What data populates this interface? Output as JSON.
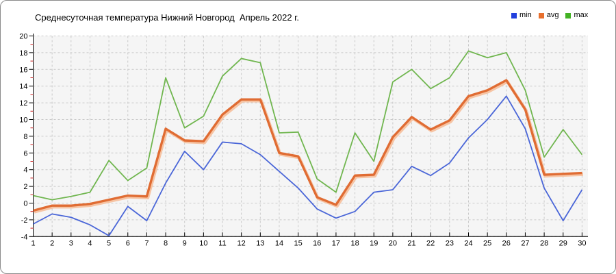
{
  "window": {
    "type": "static-chart-image"
  },
  "legend": [
    {
      "label": "min",
      "color": "#2240dd"
    },
    {
      "label": "avg",
      "color": "#e8702e"
    },
    {
      "label": "max",
      "color": "#43b224"
    }
  ],
  "chart_data": {
    "type": "line",
    "title": "Среднесуточная температура Нижний Новгород  Апрель 2022 г.",
    "xlabel": "",
    "ylabel": "",
    "x": [
      1,
      2,
      3,
      4,
      5,
      6,
      7,
      8,
      9,
      10,
      11,
      12,
      13,
      14,
      15,
      16,
      17,
      18,
      19,
      20,
      21,
      22,
      23,
      24,
      25,
      26,
      27,
      28,
      29,
      30
    ],
    "xticks": [
      1,
      2,
      3,
      4,
      5,
      6,
      7,
      8,
      9,
      10,
      11,
      12,
      13,
      14,
      15,
      16,
      17,
      18,
      19,
      20,
      21,
      22,
      23,
      24,
      25,
      26,
      27,
      28,
      29,
      30
    ],
    "ylim": [
      -4,
      20
    ],
    "yticks": [
      20,
      18,
      16,
      14,
      12,
      10,
      8,
      6,
      4,
      2,
      0,
      -2,
      -4
    ],
    "ytick_step": 2,
    "grid": "dashed",
    "legend_position": "top-right",
    "series": [
      {
        "name": "min",
        "color": "#4a66d8",
        "values": [
          -2.5,
          -1.3,
          -1.7,
          -2.6,
          -3.9,
          -0.4,
          -2.1,
          2.4,
          6.2,
          4.0,
          7.3,
          7.1,
          5.8,
          3.8,
          1.8,
          -0.7,
          -1.8,
          -1.0,
          1.3,
          1.6,
          4.4,
          3.3,
          4.8,
          7.8,
          10.0,
          12.8,
          8.9,
          1.8,
          -2.1,
          1.6
        ]
      },
      {
        "name": "avg",
        "color": "#e06c33",
        "values": [
          -0.9,
          -0.3,
          -0.3,
          -0.1,
          0.4,
          0.9,
          0.8,
          8.9,
          7.5,
          7.4,
          10.6,
          12.4,
          12.4,
          6.0,
          5.6,
          0.7,
          -0.2,
          3.3,
          3.4,
          7.9,
          10.3,
          8.8,
          9.9,
          12.8,
          13.5,
          14.7,
          11.2,
          3.4,
          3.5,
          3.6
        ]
      },
      {
        "name": "max",
        "color": "#70b64f",
        "values": [
          0.9,
          0.4,
          0.8,
          1.3,
          5.1,
          2.7,
          4.2,
          15.0,
          9.0,
          10.4,
          15.2,
          17.3,
          16.8,
          8.4,
          8.5,
          2.9,
          1.3,
          8.4,
          5.0,
          14.5,
          16.0,
          13.7,
          15.0,
          18.2,
          17.4,
          18.0,
          13.5,
          5.5,
          8.8,
          5.8
        ]
      }
    ],
    "colors": {
      "plot_background": "#f5f5f5",
      "gridline": "#c9c9c9",
      "axis": "#000000",
      "minor_tick": "#cc2020",
      "avg_halo": "#f6c4a4"
    }
  }
}
